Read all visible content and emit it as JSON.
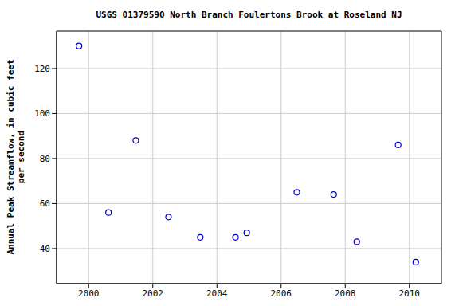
{
  "chart_data": {
    "type": "scatter",
    "title": "USGS 01379590 North Branch Foulertons Brook at Roseland NJ",
    "y_label": "Annual Peak Streamflow, in cubic feet per second",
    "x": [
      1999.7,
      2000.62,
      2001.47,
      2002.49,
      2003.48,
      2004.58,
      2004.93,
      2006.49,
      2007.64,
      2008.36,
      2009.65,
      2010.2
    ],
    "values": [
      130,
      56,
      88,
      54,
      45,
      45,
      47,
      65,
      64,
      43,
      86,
      34
    ],
    "color": "#0000cc",
    "marker": "open_circle",
    "xlim": [
      1999,
      2011
    ],
    "xticks": [
      2000,
      2002,
      2004,
      2006,
      2008,
      2010
    ],
    "ylim": [
      24.4,
      136.6
    ],
    "yticks": [
      40,
      60,
      80,
      100,
      120
    ],
    "grid": true
  }
}
